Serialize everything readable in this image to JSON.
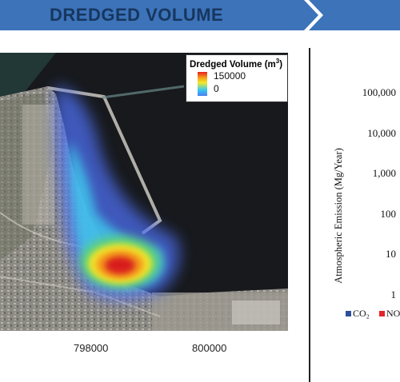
{
  "banner": {
    "title": "DREDGED VOLUME",
    "colors": {
      "banner_bg": "#3c73b9",
      "title_text": "#17365f"
    }
  },
  "map": {
    "legend": {
      "title_main": "Dredged Volume (m",
      "title_sup": "3",
      "title_close": ")",
      "max_label": "150000",
      "min_label": "0"
    },
    "x_ticks": [
      "798000",
      "800000"
    ],
    "colors": {
      "water": "#17191c",
      "land": "#8f8a80",
      "heat_core": "#d81d1f",
      "heat_edge": "#4d6ef0"
    }
  },
  "chart_data": {
    "type": "bar",
    "scale": "log",
    "ylabel": "Atmospheric Emission (Mg/Year)",
    "y_ticks": [
      "100,000",
      "10,000",
      "1,000",
      "100",
      "10",
      "1"
    ],
    "ylim": [
      1,
      100000
    ],
    "series": [
      {
        "name": "CO₂",
        "color": "#2c4f9a"
      },
      {
        "name": "NO",
        "color": "#e0262a"
      }
    ]
  }
}
